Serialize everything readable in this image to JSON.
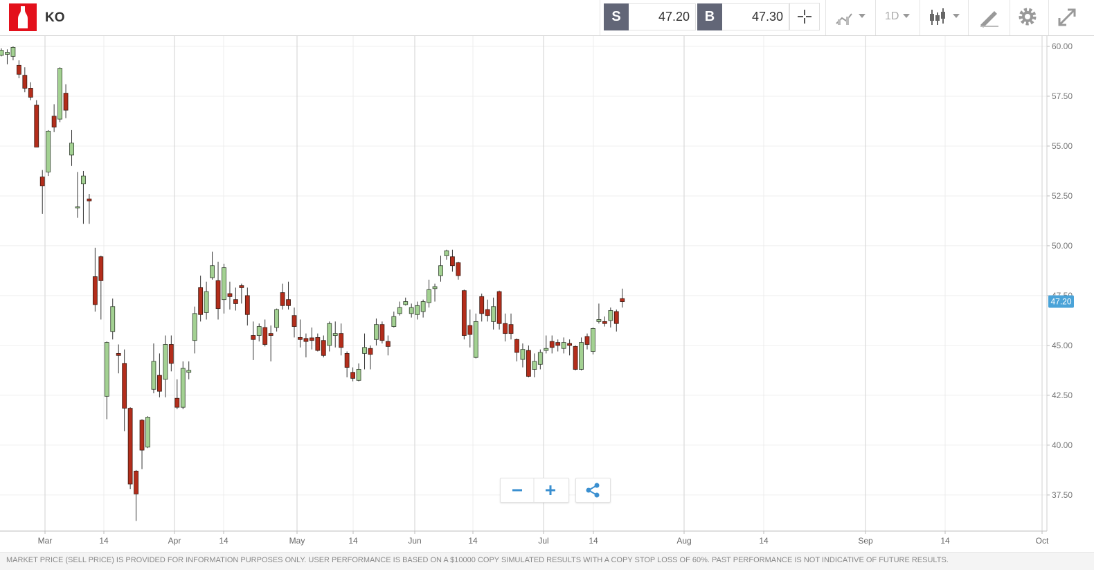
{
  "header": {
    "symbol": "KO",
    "sell_label": "S",
    "sell_price": "47.20",
    "buy_label": "B",
    "buy_price": "47.30",
    "timeframe": "1D"
  },
  "chart_data": {
    "type": "candlestick",
    "series": {
      "open": [
        59.55,
        59.6,
        59.5,
        59.05,
        58.55,
        57.9,
        57.05,
        53.45,
        53.7,
        56.5,
        56.35,
        57.65,
        54.55,
        51.9,
        53.1,
        52.35,
        48.45,
        49.45,
        42.45,
        45.7,
        44.6,
        44.1,
        41.85,
        38.7,
        41.25,
        39.9,
        42.8,
        43.5,
        43.3,
        45.05,
        42.35,
        41.9,
        43.65,
        45.25,
        47.9,
        46.65,
        48.4,
        48.25,
        47.3,
        47.6,
        47.3,
        48.0,
        47.5,
        45.5,
        45.5,
        45.9,
        45.6,
        45.9,
        47.65,
        47.3,
        46.5,
        45.4,
        45.35,
        45.38,
        45.4,
        45.25,
        45.0,
        45.5,
        45.6,
        44.6,
        43.65,
        43.25,
        44.6,
        44.85,
        45.3,
        46.05,
        45.2,
        45.95,
        46.6,
        47.05,
        46.6,
        46.55,
        46.7,
        47.15,
        47.85,
        48.5,
        49.5,
        49.45,
        49.15,
        47.75,
        46.0,
        44.4,
        47.45,
        46.8,
        46.2,
        47.7,
        46.1,
        46.05,
        45.3,
        44.3,
        44.75,
        43.8,
        44.05,
        44.75,
        45.2,
        45.15,
        44.85,
        45.1,
        44.95,
        43.8,
        45.45,
        44.7,
        46.2,
        46.2,
        46.25,
        46.7,
        47.35
      ],
      "high": [
        59.9,
        59.85,
        60.0,
        59.3,
        58.95,
        58.2,
        57.3,
        53.8,
        55.8,
        57.1,
        58.95,
        58.1,
        55.8,
        53.7,
        53.75,
        52.6,
        49.9,
        49.5,
        45.2,
        47.35,
        45.05,
        44.8,
        41.9,
        38.75,
        41.3,
        41.45,
        45.1,
        44.6,
        45.5,
        45.5,
        43.3,
        44.2,
        44.2,
        46.95,
        48.5,
        48.2,
        49.7,
        49.2,
        49.1,
        48.2,
        47.9,
        48.1,
        47.9,
        46.2,
        46.1,
        46.3,
        46.0,
        46.85,
        48.1,
        48.2,
        46.9,
        46.3,
        45.6,
        45.9,
        45.6,
        45.5,
        46.2,
        46.2,
        46.1,
        44.7,
        43.9,
        44.1,
        45.6,
        45.0,
        46.35,
        46.2,
        45.5,
        46.7,
        47.2,
        47.4,
        47.1,
        47.2,
        47.3,
        48.3,
        48.1,
        49.5,
        49.8,
        49.8,
        49.2,
        47.8,
        46.8,
        46.6,
        47.6,
        47.3,
        47.4,
        47.75,
        46.6,
        46.6,
        45.35,
        45.1,
        45.0,
        44.6,
        44.8,
        45.5,
        45.5,
        45.3,
        45.4,
        45.3,
        45.0,
        45.4,
        45.6,
        45.9,
        47.1,
        46.45,
        46.9,
        46.8,
        47.85
      ],
      "low": [
        59.5,
        59.1,
        59.3,
        58.4,
        57.7,
        57.3,
        54.95,
        51.6,
        53.5,
        55.7,
        56.2,
        56.4,
        54.0,
        51.4,
        51.1,
        51.1,
        46.7,
        46.3,
        41.3,
        45.3,
        43.6,
        40.7,
        37.8,
        36.2,
        38.8,
        39.85,
        42.6,
        42.4,
        42.4,
        43.7,
        41.8,
        41.8,
        43.3,
        44.6,
        46.2,
        46.3,
        48.3,
        46.3,
        46.6,
        46.8,
        46.75,
        47.1,
        46.0,
        44.27,
        45.2,
        44.95,
        44.2,
        45.7,
        46.8,
        46.8,
        45.4,
        44.9,
        44.4,
        44.8,
        44.7,
        44.4,
        44.7,
        44.9,
        44.5,
        43.4,
        43.2,
        43.2,
        43.8,
        43.8,
        45.0,
        45.1,
        44.5,
        45.9,
        46.5,
        47.0,
        46.4,
        46.3,
        46.4,
        46.9,
        47.2,
        48.2,
        49.3,
        48.7,
        48.3,
        45.3,
        44.9,
        44.35,
        46.2,
        46.2,
        45.8,
        45.8,
        45.2,
        45.3,
        44.2,
        43.9,
        43.4,
        43.4,
        43.8,
        44.6,
        44.6,
        44.7,
        44.6,
        44.5,
        43.75,
        43.75,
        44.8,
        44.55,
        46.1,
        45.95,
        45.9,
        45.7,
        46.9
      ],
      "close": [
        59.8,
        59.7,
        59.95,
        58.6,
        57.9,
        57.45,
        54.95,
        53.0,
        55.75,
        55.95,
        58.9,
        56.8,
        55.15,
        51.95,
        53.5,
        52.25,
        47.05,
        48.25,
        45.15,
        46.95,
        44.5,
        41.85,
        38.05,
        37.55,
        39.75,
        41.4,
        44.2,
        42.7,
        45.05,
        44.1,
        41.9,
        43.85,
        43.75,
        46.6,
        46.55,
        47.7,
        49.0,
        46.85,
        48.9,
        47.45,
        47.1,
        47.9,
        46.55,
        45.3,
        45.95,
        45.05,
        45.5,
        46.8,
        47.0,
        47.0,
        45.95,
        45.3,
        45.2,
        45.25,
        44.75,
        44.5,
        46.1,
        45.6,
        44.9,
        43.9,
        43.35,
        43.8,
        44.9,
        44.55,
        46.05,
        45.25,
        44.95,
        46.45,
        46.9,
        47.2,
        46.9,
        47.0,
        47.2,
        47.8,
        47.95,
        49.0,
        49.75,
        49.0,
        48.5,
        45.5,
        45.55,
        46.2,
        46.6,
        46.5,
        46.95,
        46.1,
        45.6,
        45.6,
        44.65,
        44.8,
        43.45,
        44.2,
        44.65,
        44.85,
        44.9,
        45.0,
        45.15,
        45.0,
        43.8,
        45.15,
        45.05,
        45.85,
        46.3,
        46.1,
        46.75,
        46.1,
        47.2
      ]
    },
    "up_color": "#a3d192",
    "down_color": "#b32d1b",
    "ylim": [
      35.69,
      60.52
    ],
    "yticks": [
      {
        "value": 37.5,
        "label": "37.50"
      },
      {
        "value": 40,
        "label": "40.00"
      },
      {
        "value": 42.5,
        "label": "42.50"
      },
      {
        "value": 45,
        "label": "45.00"
      },
      {
        "value": 47.5,
        "label": "47.50"
      },
      {
        "value": 50,
        "label": "50.00"
      },
      {
        "value": 52.5,
        "label": "52.50"
      },
      {
        "value": 55,
        "label": "55.00"
      },
      {
        "value": 57.5,
        "label": "57.50"
      },
      {
        "value": 60,
        "label": "60.00"
      }
    ],
    "xticks": [
      "Mar",
      "14",
      "Apr",
      "14",
      "May",
      "14",
      "Jun",
      "14",
      "Jul",
      "14",
      "Aug",
      "14",
      "Sep",
      "14",
      "Oct"
    ],
    "last_price": {
      "value": 47.2,
      "label": "47.20"
    },
    "grid": true
  },
  "footer": {
    "disclaimer": "MARKET PRICE (SELL PRICE) IS PROVIDED FOR INFORMATION PURPOSES ONLY. USER PERFORMANCE IS BASED ON A $10000 COPY SIMULATED RESULTS WITH A COPY STOP LOSS OF 60%. PAST PERFORMANCE IS NOT INDICATIVE OF FUTURE RESULTS."
  }
}
